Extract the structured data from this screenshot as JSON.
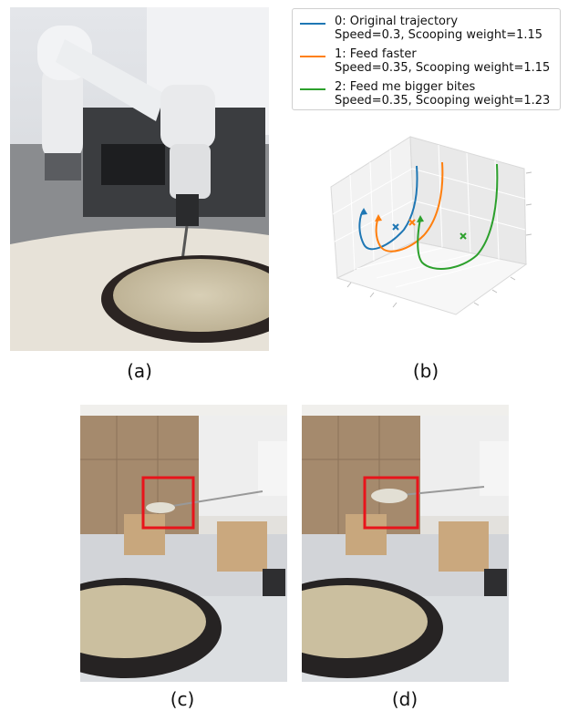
{
  "captions": {
    "a": "(a)",
    "b": "(b)",
    "c": "(c)",
    "d": "(d)"
  },
  "colors": {
    "blue": "#1f77b4",
    "orange": "#ff7f0e",
    "green": "#2ca02c",
    "highlight": "#e8141b"
  },
  "chart_data": {
    "type": "line",
    "projection": "3d",
    "grid": true,
    "legend_position": "top-right",
    "title": "",
    "xlabel": "",
    "ylabel": "",
    "zlabel": "",
    "series": [
      {
        "name": "0: Original trajectory",
        "line2": "Speed=0.3, Scooping weight=1.15",
        "color": "#1f77b4",
        "speed": 0.3,
        "scooping_weight": 1.15
      },
      {
        "name": "1: Feed faster",
        "line2": "Speed=0.35, Scooping weight=1.15",
        "color": "#ff7f0e",
        "speed": 0.35,
        "scooping_weight": 1.15
      },
      {
        "name": "2: Feed me bigger bites",
        "line2": "Speed=0.35, Scooping weight=1.23",
        "color": "#2ca02c",
        "speed": 0.35,
        "scooping_weight": 1.23
      }
    ]
  }
}
